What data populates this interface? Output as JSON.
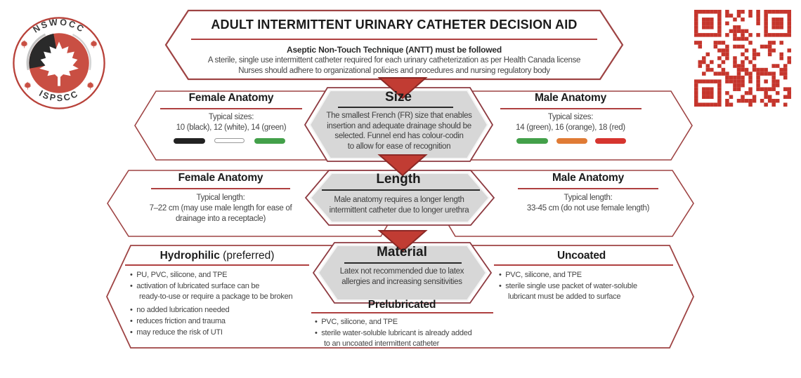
{
  "colors": {
    "border_red": "#9e4343",
    "center_border": "#8d3a40",
    "underline_red": "#af4040",
    "underline_black": "#2b2b2b",
    "arrow_fill": "#c13c33",
    "arrow_border": "#8c2926",
    "gray_fill": "#d7d7d7",
    "text_header": "#1c1c1c",
    "text_body": "#454545",
    "qr_red": "#c5352c",
    "logo_red": "#c94f43",
    "logo_ring": "#b8423a",
    "swatch_black": "#222222",
    "swatch_white": "#ffffff",
    "swatch_white_border": "#9a9a9a",
    "swatch_green": "#43a04a",
    "swatch_orange": "#e07b35",
    "swatch_red": "#d6352f"
  },
  "logo": {
    "top": "NSWOCC",
    "bottom": "ISPSCC"
  },
  "title_block": {
    "title": "ADULT INTERMITTENT URINARY CATHETER DECISION AID",
    "rule_bold": "Aseptic Non-Touch Technique (ANTT) must be followed",
    "note1": "A sterile, single use intermittent catheter required for each urinary catheterization as per Health Canada license",
    "note2": "Nurses should adhere to organizational policies and procedures and nursing regulatory body"
  },
  "size_row": {
    "center": {
      "title": "Size",
      "lines": [
        "The smallest French (FR) size that enables",
        "insertion and adequate drainage should be",
        "selected. Funnel end has colour-codin",
        "to allow for ease of recognition"
      ]
    },
    "female": {
      "title": "Female Anatomy",
      "label": "Typical sizes:",
      "value": "10 (black), 12 (white), 14 (green)",
      "swatches": [
        "black",
        "white",
        "green"
      ]
    },
    "male": {
      "title": "Male Anatomy",
      "label": "Typical sizes:",
      "value": "14 (green), 16 (orange), 18 (red)",
      "swatches": [
        "green",
        "orange",
        "red"
      ]
    }
  },
  "length_row": {
    "center": {
      "title": "Length",
      "lines": [
        "Male anatomy requires a longer length",
        "intermittent catheter due to longer urethra"
      ]
    },
    "female": {
      "title": "Female Anatomy",
      "label": "Typical length:",
      "line1": "7–22 cm (may use male length for ease of",
      "line2": "drainage into a receptacle)"
    },
    "male": {
      "title": "Male Anatomy",
      "label": "Typical length:",
      "line1": "33-45 cm (do not use female length)"
    }
  },
  "material_row": {
    "center": {
      "title": "Material",
      "lines": [
        "Latex not recommended due to latex",
        "allergies and increasing sensitivities"
      ]
    },
    "hydrophilic": {
      "title_bold": "Hydrophilic",
      "title_note": " (preferred)",
      "lines": [
        "PU, PVC, silicone, and TPE",
        "activation of lubricated surface can be",
        "ready-to-use or require a package to be broken",
        "no added lubrication needed",
        "reduces friction and trauma",
        "may reduce the risk of UTI"
      ]
    },
    "prelubricated": {
      "title": "Prelubricated",
      "lines": [
        "PVC, silicone, and TPE",
        "sterile water-soluble lubricant is already added",
        "to an uncoated intermittent catheter"
      ]
    },
    "uncoated": {
      "title": "Uncoated",
      "lines": [
        "PVC, silicone, and TPE",
        "sterile single use packet of water-soluble",
        "lubricant must be added to surface"
      ]
    }
  }
}
